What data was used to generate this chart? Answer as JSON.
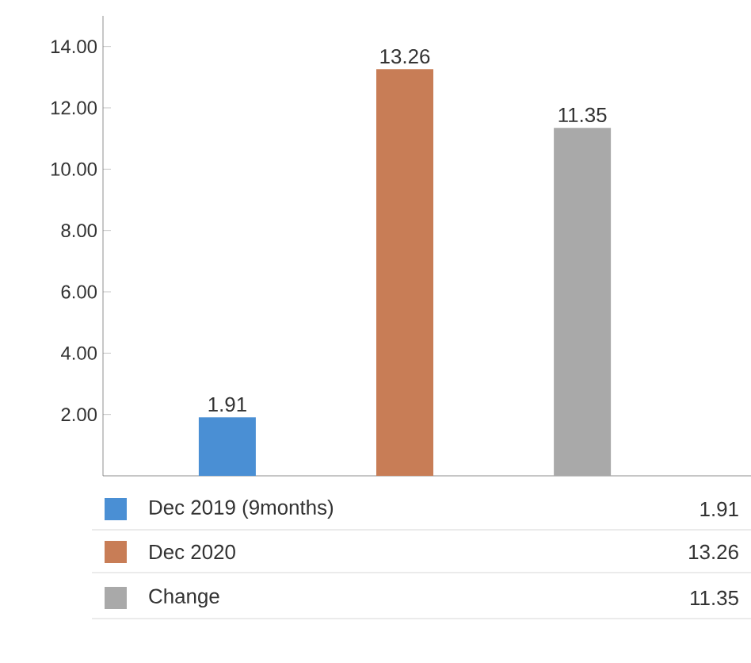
{
  "chart_data": {
    "type": "bar",
    "categories": [
      null,
      null,
      null
    ],
    "series": [
      {
        "name": "Dec 2019 (9months)",
        "color": "#4a8fd4",
        "values": [
          1.91,
          null,
          null
        ],
        "value_labels": [
          "1.91",
          null,
          null
        ]
      },
      {
        "name": "Dec 2020",
        "color": "#c87d56",
        "values": [
          null,
          13.26,
          null
        ],
        "value_labels": [
          null,
          "13.26",
          null
        ]
      },
      {
        "name": "Change",
        "color": "#a9a9a9",
        "values": [
          null,
          null,
          11.35
        ],
        "value_labels": [
          null,
          null,
          "11.35"
        ]
      }
    ],
    "ylim": [
      0,
      15
    ],
    "yticks": [
      {
        "value": 2,
        "label": "2.00"
      },
      {
        "value": 4,
        "label": "4.00"
      },
      {
        "value": 6,
        "label": "6.00"
      },
      {
        "value": 8,
        "label": "8.00"
      },
      {
        "value": 10,
        "label": "10.00"
      },
      {
        "value": 12,
        "label": "12.00"
      },
      {
        "value": 14,
        "label": "14.00"
      }
    ],
    "annotations": [
      "1.91",
      "13.26",
      "11.35"
    ],
    "legend": "bottom",
    "grid": false
  }
}
